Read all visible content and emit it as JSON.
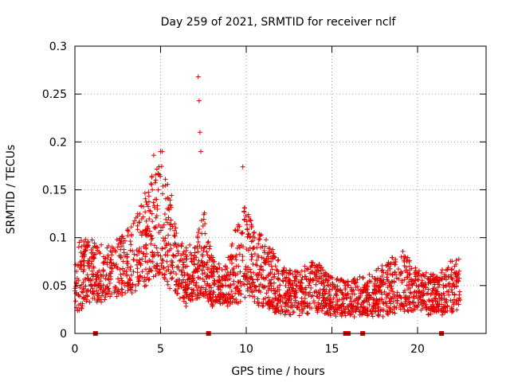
{
  "chart_data": {
    "type": "scatter",
    "title": "Day 259 of 2021, SRMTID for receiver nclf",
    "xlabel": "GPS time / hours",
    "ylabel": "SRMTID / TECUs",
    "xlim": [
      0,
      24
    ],
    "ylim": [
      0,
      0.3
    ],
    "x_ticks": [
      0,
      5,
      10,
      15,
      20
    ],
    "x_tick_labels": [
      "0",
      "5",
      "10",
      "15",
      "20"
    ],
    "y_ticks": [
      0,
      0.05,
      0.1,
      0.15,
      0.2,
      0.25,
      0.3
    ],
    "y_tick_labels": [
      "0",
      "0.05",
      "0.1",
      "0.15",
      "0.2",
      "0.25",
      "0.3"
    ],
    "grid": true,
    "marker": "+",
    "color": "#e00000",
    "spikes": [
      {
        "x": 7.2,
        "y": 0.268
      },
      {
        "x": 7.25,
        "y": 0.243
      },
      {
        "x": 7.3,
        "y": 0.21
      },
      {
        "x": 7.35,
        "y": 0.19
      },
      {
        "x": 9.8,
        "y": 0.174
      },
      {
        "x": 5.0,
        "y": 0.19
      },
      {
        "x": 4.6,
        "y": 0.186
      },
      {
        "x": 5.1,
        "y": 0.19
      }
    ],
    "data_gaps_at_zero": [
      {
        "x": 1.2,
        "y": 0
      },
      {
        "x": 7.8,
        "y": 0
      },
      {
        "x": 15.8,
        "y": 0
      },
      {
        "x": 15.95,
        "y": 0
      },
      {
        "x": 16.8,
        "y": 0
      },
      {
        "x": 21.4,
        "y": 0
      }
    ],
    "envelope": [
      [
        0.0,
        0.02,
        0.07
      ],
      [
        0.25,
        0.025,
        0.1
      ],
      [
        0.5,
        0.03,
        0.1
      ],
      [
        1.0,
        0.035,
        0.095
      ],
      [
        1.5,
        0.03,
        0.09
      ],
      [
        2.0,
        0.04,
        0.09
      ],
      [
        2.5,
        0.04,
        0.1
      ],
      [
        3.0,
        0.04,
        0.11
      ],
      [
        3.5,
        0.045,
        0.12
      ],
      [
        4.0,
        0.05,
        0.14
      ],
      [
        4.5,
        0.06,
        0.17
      ],
      [
        5.0,
        0.06,
        0.18
      ],
      [
        5.5,
        0.05,
        0.16
      ],
      [
        6.0,
        0.04,
        0.1
      ],
      [
        6.5,
        0.03,
        0.09
      ],
      [
        7.0,
        0.035,
        0.09
      ],
      [
        7.5,
        0.04,
        0.13
      ],
      [
        8.0,
        0.03,
        0.08
      ],
      [
        8.5,
        0.03,
        0.07
      ],
      [
        9.0,
        0.03,
        0.08
      ],
      [
        9.5,
        0.03,
        0.12
      ],
      [
        10.0,
        0.04,
        0.14
      ],
      [
        10.5,
        0.03,
        0.11
      ],
      [
        11.0,
        0.03,
        0.1
      ],
      [
        11.5,
        0.025,
        0.09
      ],
      [
        12.0,
        0.02,
        0.07
      ],
      [
        13.0,
        0.02,
        0.065
      ],
      [
        14.0,
        0.025,
        0.08
      ],
      [
        15.0,
        0.02,
        0.06
      ],
      [
        16.0,
        0.02,
        0.055
      ],
      [
        17.0,
        0.02,
        0.06
      ],
      [
        18.0,
        0.02,
        0.07
      ],
      [
        19.0,
        0.025,
        0.085
      ],
      [
        20.0,
        0.025,
        0.07
      ],
      [
        21.0,
        0.02,
        0.06
      ],
      [
        22.0,
        0.02,
        0.075
      ],
      [
        22.5,
        0.03,
        0.09
      ]
    ]
  }
}
